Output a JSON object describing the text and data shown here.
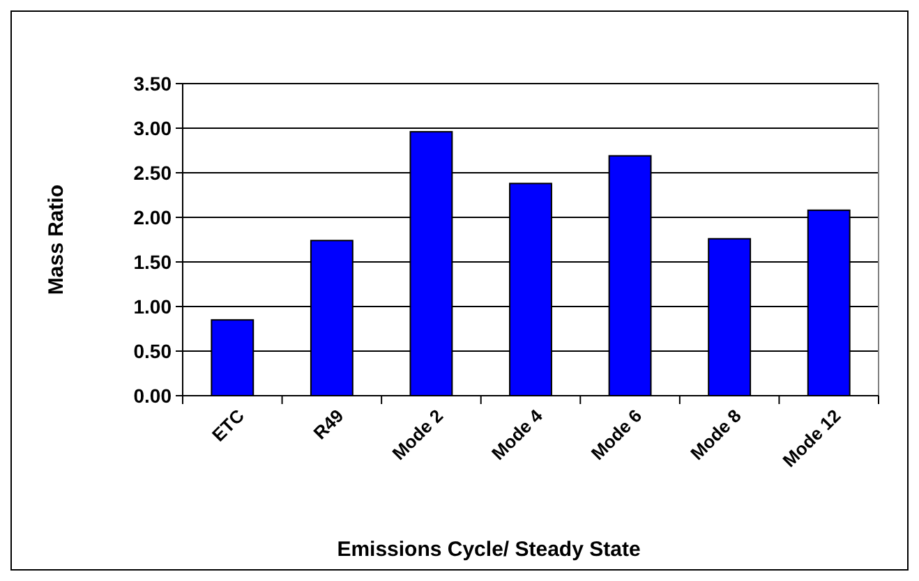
{
  "chart_data": {
    "type": "bar",
    "xlabel": "Emissions Cycle/ Steady State",
    "ylabel": "Mass Ratio",
    "categories": [
      "ETC",
      "R49",
      "Mode 2",
      "Mode 4",
      "Mode 6",
      "Mode 8",
      "Mode 12"
    ],
    "values": [
      0.85,
      1.74,
      2.96,
      2.38,
      2.69,
      1.76,
      2.08
    ],
    "color": "#0000ff",
    "ylim": [
      0,
      3.5
    ],
    "yticks": [
      {
        "value": 0,
        "label": "0.00"
      },
      {
        "value": 0.5,
        "label": "0.50"
      },
      {
        "value": 1,
        "label": "1.00"
      },
      {
        "value": 1.5,
        "label": "1.50"
      },
      {
        "value": 2,
        "label": "2.00"
      },
      {
        "value": 2.5,
        "label": "2.50"
      },
      {
        "value": 3,
        "label": "3.00"
      },
      {
        "value": 3.5,
        "label": "3.50"
      }
    ],
    "grid": "y"
  }
}
